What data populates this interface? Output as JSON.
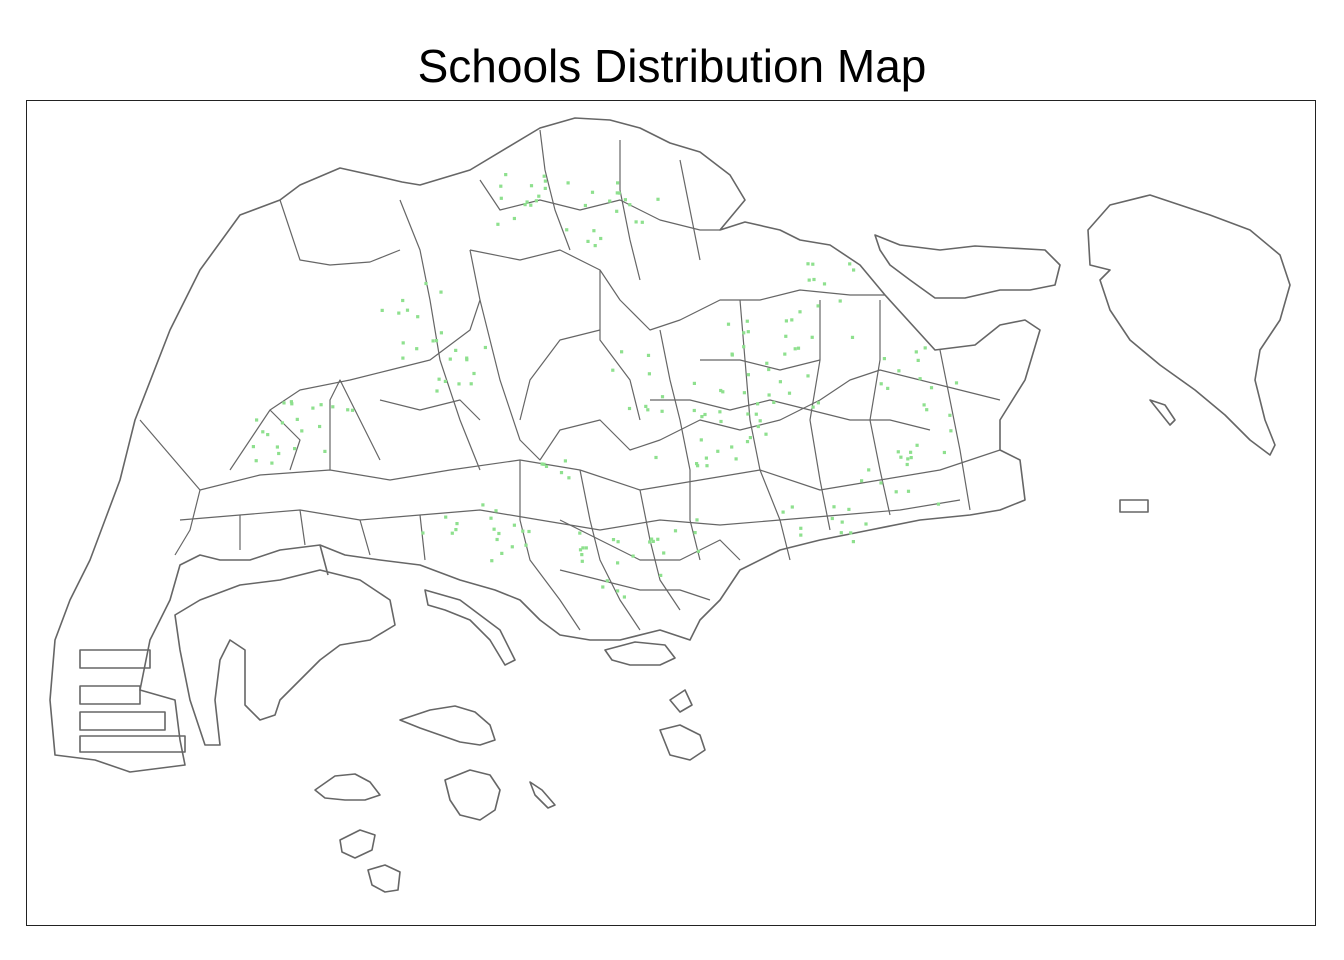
{
  "map": {
    "title": "Schools Distribution Map",
    "point_color": "#8ee08e",
    "boundary_color": "#666666",
    "frame_color": "#222222",
    "background": "#ffffff"
  }
}
